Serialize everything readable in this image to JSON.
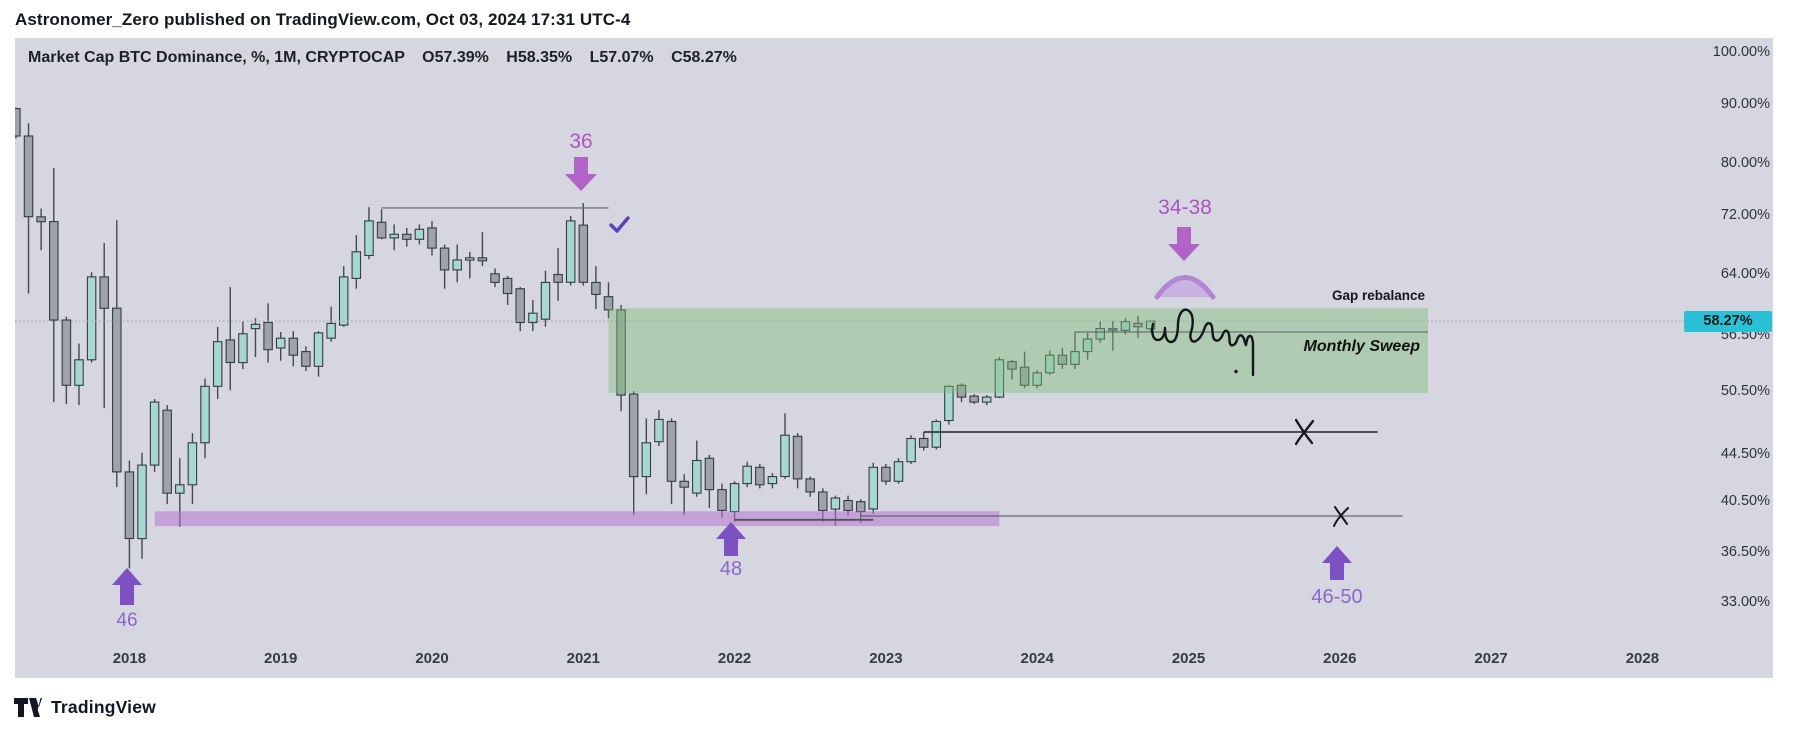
{
  "header": {
    "published_line": "Astronomer_Zero published on TradingView.com, Oct 03, 2024 17:31 UTC-4"
  },
  "legend": {
    "symbol_title": "Market Cap BTC Dominance, %, 1M, CRYPTOCAP",
    "open": "O57.39%",
    "high": "H58.35%",
    "low": "L57.07%",
    "close": "C58.27%"
  },
  "price_scale": {
    "ticks": [
      "100.00%",
      "90.00%",
      "80.00%",
      "72.00%",
      "64.00%",
      "56.50%",
      "50.50%",
      "44.50%",
      "40.50%",
      "36.50%",
      "33.00%"
    ],
    "last_price_badge": "58.27%"
  },
  "time_scale": {
    "years": [
      "2018",
      "2019",
      "2020",
      "2021",
      "2022",
      "2023",
      "2024",
      "2025",
      "2026",
      "2027",
      "2028"
    ]
  },
  "annotations": {
    "top_target_2021": "36",
    "macro_top_target": "34-38",
    "low_2018_target": "46",
    "low_2022_target": "48",
    "future_low_zone": "46-50",
    "gap_rebalance": "Gap rebalance",
    "monthly_sweep": "Monthly Sweep",
    "checkmark": "sweep-confirmed"
  },
  "footer": {
    "brand": "TradingView"
  },
  "colors": {
    "chart_bg": "#d5d6df",
    "up_candle": "#a5d8d2",
    "down_candle": "#9fa2ab",
    "candle_border": "#363a45",
    "wick": "#444852",
    "green_zone": "#7cbe74",
    "purple_band": "#b678cf",
    "arrow_up_purple": "#7d50c4",
    "arrow_down_orchid": "#b263c6",
    "label_purple": "#8a68cb",
    "label_orchid": "#ad53c4",
    "badge_bg": "#28c1d5",
    "check_mark": "#5b41be",
    "dome_fill": "#c5a8e0",
    "dome_stroke": "#b287d2",
    "drawing_ink": "#14161c"
  },
  "chart_data": {
    "type": "candlestick",
    "title": "Market Cap BTC Dominance %",
    "symbol": "CRYPTOCAP BTC Dominance",
    "timeframe": "1M",
    "ohlc_readout": {
      "open": 57.39,
      "high": 58.35,
      "low": 57.07,
      "close": 58.27
    },
    "y_axis": {
      "scale": "log",
      "unit": "%",
      "tick_values": [
        100,
        90,
        80,
        72,
        64,
        58.27,
        56.5,
        50.5,
        44.5,
        40.5,
        36.5,
        33
      ]
    },
    "x_axis": {
      "start": "2017-04",
      "end_visible": "2028-12",
      "last_candle": "2024-10"
    },
    "current_price": 58.27,
    "candles": [
      [
        "2017-04",
        89.4,
        89.6,
        84.2,
        84.6
      ],
      [
        "2017-05",
        84.6,
        86.8,
        61.6,
        71.9
      ],
      [
        "2017-06",
        71.9,
        73.1,
        67.2,
        71.2
      ],
      [
        "2017-07",
        71.2,
        79.3,
        49.5,
        58.4
      ],
      [
        "2017-08",
        58.4,
        58.8,
        49.3,
        51.2
      ],
      [
        "2017-09",
        51.2,
        55.7,
        49.2,
        53.9
      ],
      [
        "2017-10",
        53.9,
        64.3,
        53.6,
        63.7
      ],
      [
        "2017-11",
        63.7,
        68.2,
        48.9,
        59.8
      ],
      [
        "2017-12",
        59.8,
        71.4,
        41.7,
        43.0
      ],
      [
        "2018-01",
        43.0,
        44.0,
        35.4,
        37.6
      ],
      [
        "2018-02",
        37.6,
        44.7,
        36.1,
        43.6
      ],
      [
        "2018-03",
        43.6,
        49.8,
        43.0,
        49.5
      ],
      [
        "2018-04",
        48.7,
        49.2,
        40.3,
        41.2
      ],
      [
        "2018-05",
        41.2,
        44.2,
        38.5,
        41.9
      ],
      [
        "2018-06",
        41.9,
        46.5,
        40.3,
        45.6
      ],
      [
        "2018-07",
        45.6,
        51.9,
        44.2,
        51.1
      ],
      [
        "2018-08",
        51.1,
        57.6,
        49.8,
        55.9
      ],
      [
        "2018-09",
        56.1,
        62.4,
        50.7,
        53.6
      ],
      [
        "2018-10",
        53.6,
        58.2,
        52.9,
        56.8
      ],
      [
        "2018-11",
        57.4,
        58.6,
        54.2,
        57.9
      ],
      [
        "2018-12",
        58.1,
        60.4,
        53.6,
        55.0
      ],
      [
        "2019-01",
        55.2,
        57.0,
        53.8,
        56.3
      ],
      [
        "2019-02",
        56.3,
        57.1,
        53.2,
        54.4
      ],
      [
        "2019-03",
        54.8,
        55.4,
        52.7,
        53.2
      ],
      [
        "2019-04",
        53.2,
        57.1,
        52.1,
        56.9
      ],
      [
        "2019-05",
        56.3,
        60.0,
        55.9,
        58.0
      ],
      [
        "2019-06",
        57.8,
        65.1,
        57.6,
        63.7
      ],
      [
        "2019-07",
        63.5,
        69.3,
        62.2,
        67.0
      ],
      [
        "2019-08",
        66.5,
        73.3,
        66.0,
        71.3
      ],
      [
        "2019-09",
        71.1,
        73.0,
        68.7,
        68.9
      ],
      [
        "2019-10",
        68.9,
        70.8,
        67.2,
        69.4
      ],
      [
        "2019-11",
        69.4,
        70.3,
        67.7,
        68.7
      ],
      [
        "2019-12",
        68.7,
        70.8,
        68.0,
        70.1
      ],
      [
        "2020-01",
        70.3,
        71.3,
        66.5,
        67.5
      ],
      [
        "2020-02",
        67.5,
        68.0,
        62.2,
        64.6
      ],
      [
        "2020-03",
        64.6,
        68.0,
        63.0,
        65.9
      ],
      [
        "2020-04",
        65.9,
        67.0,
        63.5,
        66.2
      ],
      [
        "2020-05",
        66.2,
        69.7,
        65.1,
        65.8
      ],
      [
        "2020-06",
        64.1,
        64.8,
        62.4,
        63.0
      ],
      [
        "2020-07",
        63.5,
        63.8,
        60.2,
        61.6
      ],
      [
        "2020-08",
        62.2,
        62.4,
        57.1,
        58.1
      ],
      [
        "2020-09",
        58.1,
        60.8,
        57.1,
        59.2
      ],
      [
        "2020-10",
        58.5,
        64.5,
        57.6,
        63.0
      ],
      [
        "2020-11",
        64.0,
        67.5,
        60.7,
        63.0
      ],
      [
        "2020-12",
        63.0,
        72.0,
        62.6,
        71.3
      ],
      [
        "2021-01",
        70.7,
        73.9,
        62.6,
        63.0
      ],
      [
        "2021-02",
        63.0,
        65.1,
        59.7,
        61.5
      ],
      [
        "2021-03",
        61.2,
        63.0,
        58.6,
        59.6
      ],
      [
        "2021-04",
        59.6,
        60.2,
        48.6,
        50.2
      ],
      [
        "2021-05",
        50.3,
        50.6,
        39.4,
        42.6
      ],
      [
        "2021-06",
        42.6,
        47.9,
        41.1,
        45.6
      ],
      [
        "2021-07",
        45.7,
        48.7,
        45.3,
        47.8
      ],
      [
        "2021-08",
        47.6,
        47.9,
        40.3,
        42.2
      ],
      [
        "2021-09",
        42.2,
        42.8,
        39.4,
        41.7
      ],
      [
        "2021-10",
        41.2,
        45.8,
        40.9,
        44.0
      ],
      [
        "2021-11",
        44.2,
        44.5,
        40.0,
        41.5
      ],
      [
        "2021-12",
        41.5,
        42.0,
        39.2,
        39.8
      ],
      [
        "2022-01",
        39.7,
        42.2,
        38.9,
        42.0
      ],
      [
        "2022-02",
        42.0,
        43.9,
        41.7,
        43.5
      ],
      [
        "2022-03",
        43.4,
        43.7,
        41.6,
        41.9
      ],
      [
        "2022-04",
        42.0,
        42.9,
        41.6,
        42.6
      ],
      [
        "2022-05",
        42.6,
        48.4,
        42.4,
        46.3
      ],
      [
        "2022-06",
        46.2,
        46.5,
        41.6,
        42.4
      ],
      [
        "2022-07",
        42.4,
        42.6,
        40.9,
        41.3
      ],
      [
        "2022-08",
        41.3,
        41.6,
        38.9,
        39.8
      ],
      [
        "2022-09",
        39.9,
        41.0,
        38.6,
        40.8
      ],
      [
        "2022-10",
        40.6,
        41.0,
        39.4,
        39.8
      ],
      [
        "2022-11",
        40.5,
        40.7,
        38.8,
        39.7
      ],
      [
        "2022-12",
        39.9,
        43.8,
        39.5,
        43.4
      ],
      [
        "2023-01",
        43.4,
        43.7,
        41.9,
        42.2
      ],
      [
        "2023-02",
        42.2,
        44.2,
        42.0,
        43.9
      ],
      [
        "2023-03",
        43.9,
        46.3,
        43.7,
        46.0
      ],
      [
        "2023-04",
        46.0,
        46.6,
        44.9,
        45.2
      ],
      [
        "2023-05",
        45.2,
        47.8,
        45.0,
        47.6
      ],
      [
        "2023-06",
        47.7,
        51.2,
        47.3,
        51.1
      ],
      [
        "2023-07",
        51.2,
        51.4,
        49.5,
        50.0
      ],
      [
        "2023-08",
        50.1,
        50.3,
        49.3,
        49.5
      ],
      [
        "2023-09",
        49.5,
        50.2,
        49.2,
        50.0
      ],
      [
        "2023-10",
        50.0,
        54.2,
        49.9,
        53.9
      ],
      [
        "2023-11",
        53.7,
        53.9,
        51.8,
        52.9
      ],
      [
        "2023-12",
        53.1,
        54.8,
        50.9,
        51.2
      ],
      [
        "2024-01",
        51.2,
        52.8,
        50.9,
        52.5
      ],
      [
        "2024-02",
        52.5,
        54.9,
        52.3,
        54.4
      ],
      [
        "2024-03",
        54.4,
        55.2,
        52.9,
        53.4
      ],
      [
        "2024-04",
        53.4,
        57.0,
        52.9,
        54.8
      ],
      [
        "2024-05",
        54.8,
        56.9,
        53.9,
        56.2
      ],
      [
        "2024-06",
        56.2,
        58.3,
        55.8,
        57.4
      ],
      [
        "2024-07",
        57.4,
        58.3,
        54.9,
        57.2
      ],
      [
        "2024-08",
        57.2,
        58.6,
        56.7,
        58.2
      ],
      [
        "2024-09",
        58.0,
        58.9,
        56.3,
        57.6
      ],
      [
        "2024-10",
        57.39,
        58.35,
        57.07,
        58.27
      ]
    ],
    "zones": [
      {
        "name": "monthly-sweep-green-zone",
        "from": "2021-03",
        "to": "2026-08",
        "price_top": 59.8,
        "price_bottom": 50.42,
        "fill": "#7cbe74",
        "opacity": 0.42
      },
      {
        "name": "support-purple-band",
        "from": "2018-03",
        "to": "2023-10",
        "price_top": 39.72,
        "price_bottom": 38.55,
        "fill": "#b678cf",
        "opacity": 0.55
      }
    ],
    "levels": [
      {
        "name": "equal-highs-2019-2021",
        "price": 73.2,
        "from": "2019-09",
        "to": "2021-03",
        "stroke": "#6f7380",
        "width": 1.4
      },
      {
        "name": "sweep-level",
        "price": 57.0,
        "from": "2024-04",
        "to": "2026-08",
        "stroke": "#565a62",
        "width": 1.1
      },
      {
        "name": "mid-level-46-6",
        "price": 46.6,
        "from": "2023-04",
        "to": "2026-04",
        "stroke": "#1f2229",
        "width": 1.6
      },
      {
        "name": "low-level-39-3",
        "price": 39.35,
        "from": "2022-11",
        "to": "2026-06",
        "stroke": "#4a4e57",
        "width": 1.1
      },
      {
        "name": "low-sub-level",
        "price": 39.05,
        "from": "2022-01",
        "to": "2022-12",
        "stroke": "#55505e",
        "width": 1.8
      }
    ],
    "projections": [
      {
        "name": "rounded-top-dome",
        "months": [
          "2024-11",
          "2025-03"
        ],
        "price_base": 61.3,
        "price_top": 66.0
      },
      {
        "name": "hand-drawn-sweep-squiggle",
        "months": [
          "2024-11",
          "2025-07"
        ],
        "price_range": [
          52.0,
          59.0
        ]
      }
    ]
  }
}
